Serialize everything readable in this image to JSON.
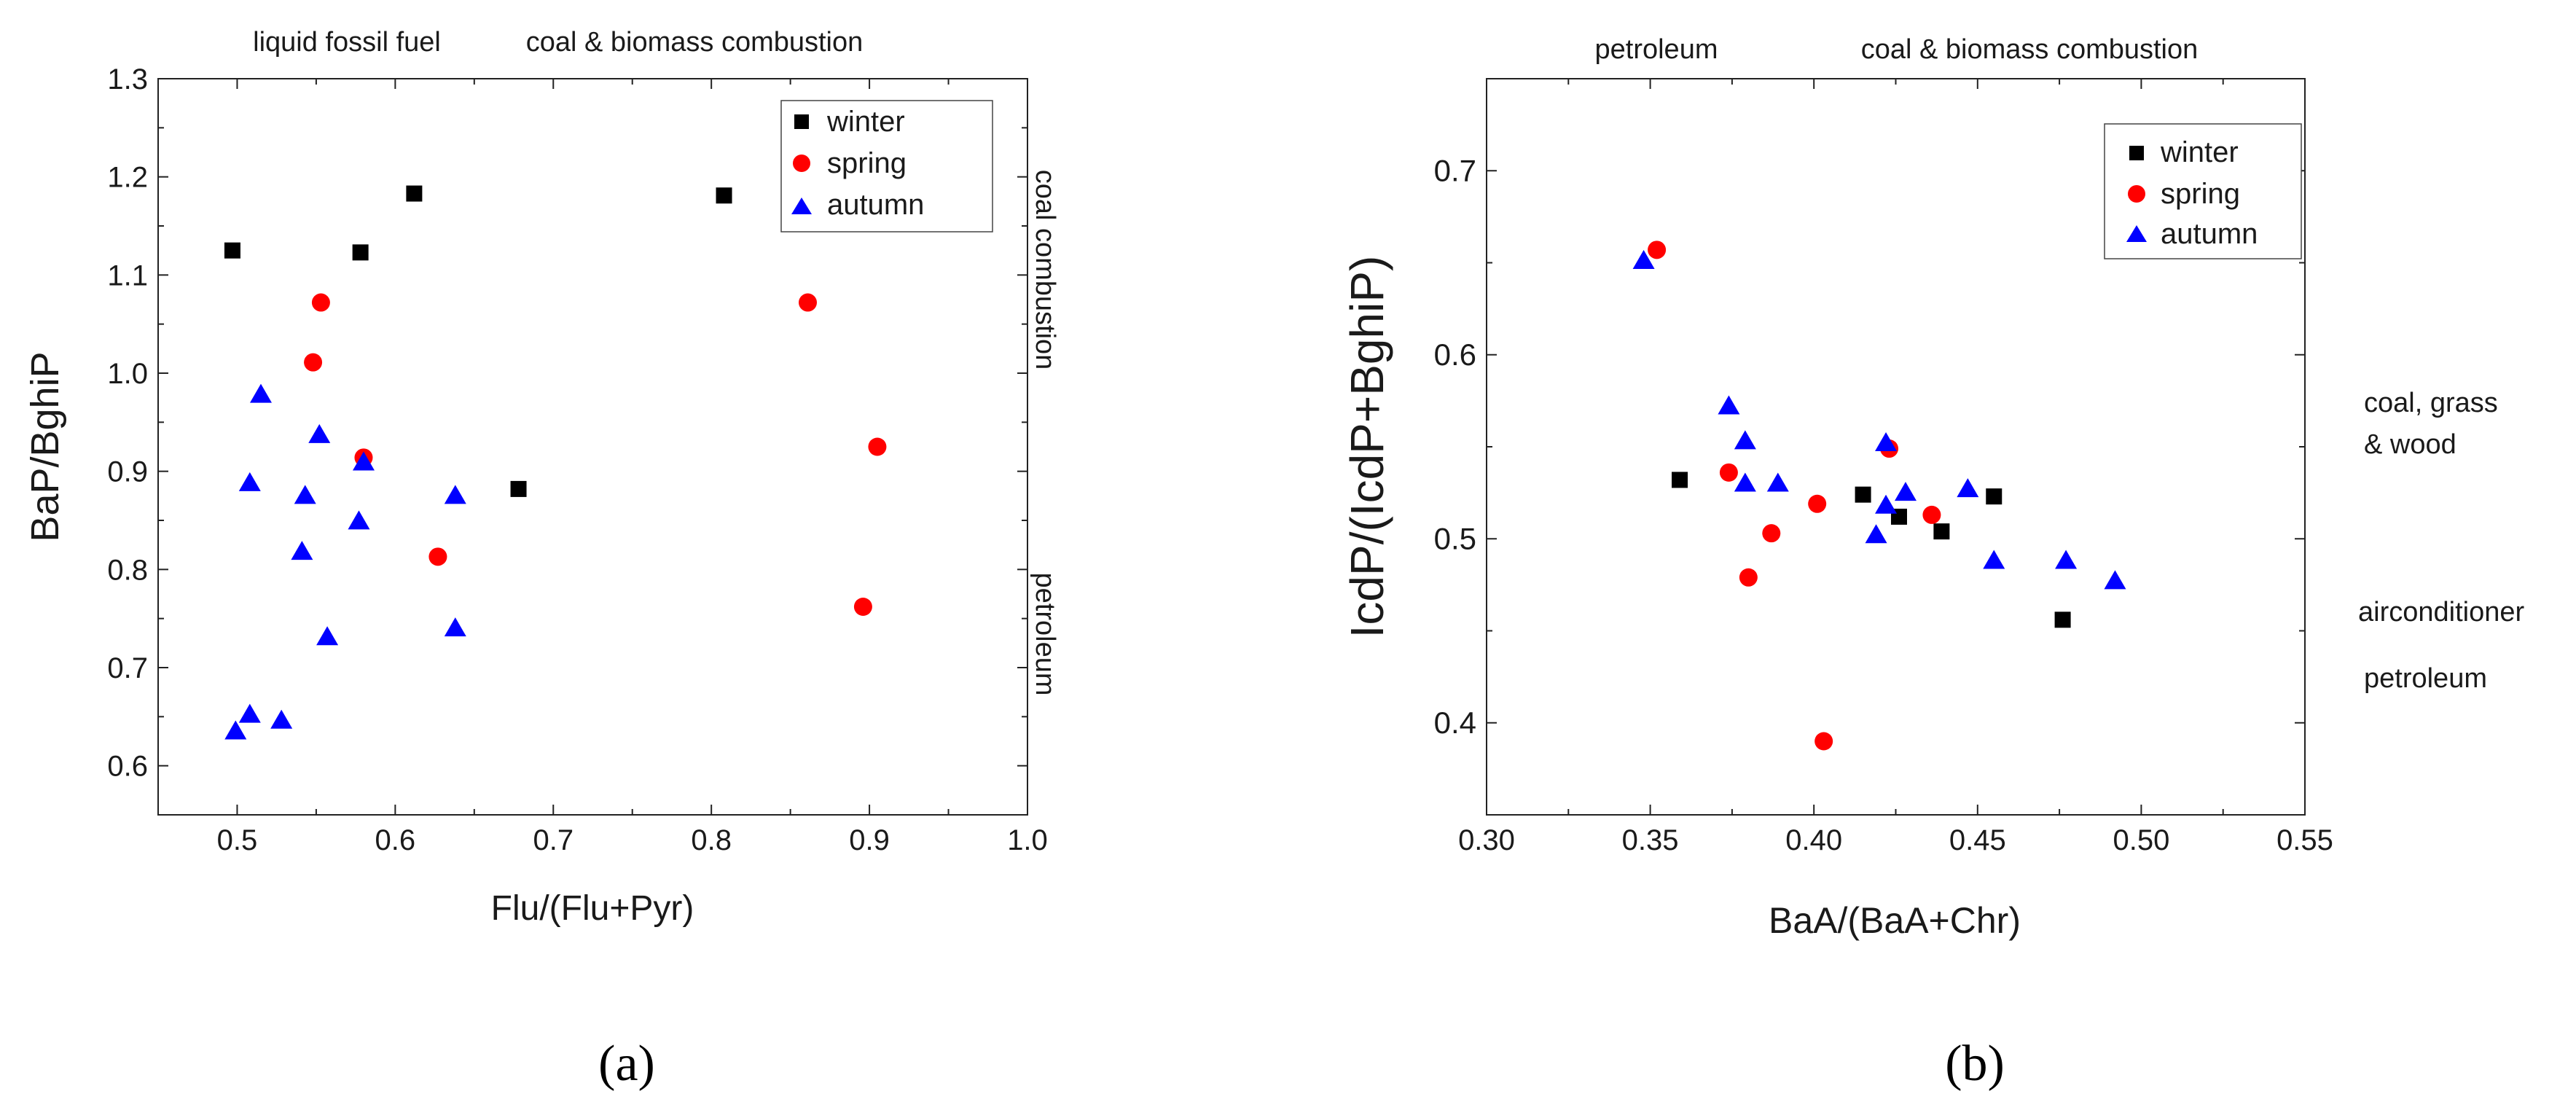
{
  "chart_data": [
    {
      "panel_label": "(a)",
      "type": "scatter",
      "xlabel": "Flu/(Flu+Pyr)",
      "ylabel": "BaP/BghiP",
      "xlim": [
        0.45,
        1.0
      ],
      "ylim": [
        0.55,
        1.3
      ],
      "xticks": [
        "0.5",
        "0.6",
        "0.7",
        "0.8",
        "0.9",
        "1.0"
      ],
      "yticks": [
        "0.6",
        "0.7",
        "0.8",
        "0.9",
        "1.0",
        "1.1",
        "1.2",
        "1.3"
      ],
      "legend_position": "top-right",
      "top_annotations": [
        "liquid fossil fuel",
        "coal & biomass combustion"
      ],
      "right_annotations": [
        "coal combustion",
        "petroleum"
      ],
      "series": [
        {
          "name": "winter",
          "marker": "square",
          "color": "#000000",
          "points": [
            [
              0.497,
              1.125
            ],
            [
              0.578,
              1.123
            ],
            [
              0.612,
              1.183
            ],
            [
              0.808,
              1.181
            ],
            [
              0.678,
              0.882
            ]
          ]
        },
        {
          "name": "spring",
          "marker": "circle",
          "color": "#ff0000",
          "points": [
            [
              0.553,
              1.072
            ],
            [
              0.548,
              1.011
            ],
            [
              0.58,
              0.914
            ],
            [
              0.627,
              0.813
            ],
            [
              0.861,
              1.072
            ],
            [
              0.905,
              0.925
            ],
            [
              0.896,
              0.762
            ]
          ]
        },
        {
          "name": "autumn",
          "marker": "triangle",
          "color": "#0000ff",
          "points": [
            [
              0.515,
              0.978
            ],
            [
              0.552,
              0.937
            ],
            [
              0.508,
              0.888
            ],
            [
              0.58,
              0.909
            ],
            [
              0.543,
              0.875
            ],
            [
              0.638,
              0.875
            ],
            [
              0.577,
              0.849
            ],
            [
              0.541,
              0.818
            ],
            [
              0.557,
              0.731
            ],
            [
              0.638,
              0.74
            ],
            [
              0.508,
              0.652
            ],
            [
              0.528,
              0.646
            ],
            [
              0.499,
              0.635
            ]
          ]
        }
      ]
    },
    {
      "panel_label": "(b)",
      "type": "scatter",
      "xlabel": "BaA/(BaA+Chr)",
      "ylabel": "IcdP/(IcdP+BghiP)",
      "xlim": [
        0.3,
        0.55
      ],
      "ylim": [
        0.35,
        0.75
      ],
      "xticks": [
        "0.30",
        "0.35",
        "0.40",
        "0.45",
        "0.50",
        "0.55"
      ],
      "yticks": [
        "0.4",
        "0.5",
        "0.6",
        "0.7"
      ],
      "legend_position": "top-right",
      "top_annotations": [
        "petroleum",
        "coal & biomass combustion"
      ],
      "right_annotations": [
        "coal, grass",
        "& wood",
        "airconditioner",
        "petroleum"
      ],
      "series": [
        {
          "name": "winter",
          "marker": "square",
          "color": "#000000",
          "points": [
            [
              0.359,
              0.532
            ],
            [
              0.415,
              0.524
            ],
            [
              0.426,
              0.512
            ],
            [
              0.439,
              0.504
            ],
            [
              0.455,
              0.523
            ],
            [
              0.476,
              0.456
            ]
          ]
        },
        {
          "name": "spring",
          "marker": "circle",
          "color": "#ff0000",
          "points": [
            [
              0.352,
              0.657
            ],
            [
              0.374,
              0.536
            ],
            [
              0.38,
              0.479
            ],
            [
              0.387,
              0.503
            ],
            [
              0.401,
              0.519
            ],
            [
              0.423,
              0.549
            ],
            [
              0.436,
              0.513
            ],
            [
              0.403,
              0.39
            ]
          ]
        },
        {
          "name": "autumn",
          "marker": "triangle",
          "color": "#0000ff",
          "points": [
            [
              0.348,
              0.651
            ],
            [
              0.374,
              0.572
            ],
            [
              0.379,
              0.553
            ],
            [
              0.379,
              0.53
            ],
            [
              0.389,
              0.53
            ],
            [
              0.422,
              0.552
            ],
            [
              0.422,
              0.518
            ],
            [
              0.428,
              0.525
            ],
            [
              0.419,
              0.502
            ],
            [
              0.447,
              0.527
            ],
            [
              0.455,
              0.488
            ],
            [
              0.477,
              0.488
            ],
            [
              0.492,
              0.477
            ]
          ]
        }
      ]
    }
  ]
}
